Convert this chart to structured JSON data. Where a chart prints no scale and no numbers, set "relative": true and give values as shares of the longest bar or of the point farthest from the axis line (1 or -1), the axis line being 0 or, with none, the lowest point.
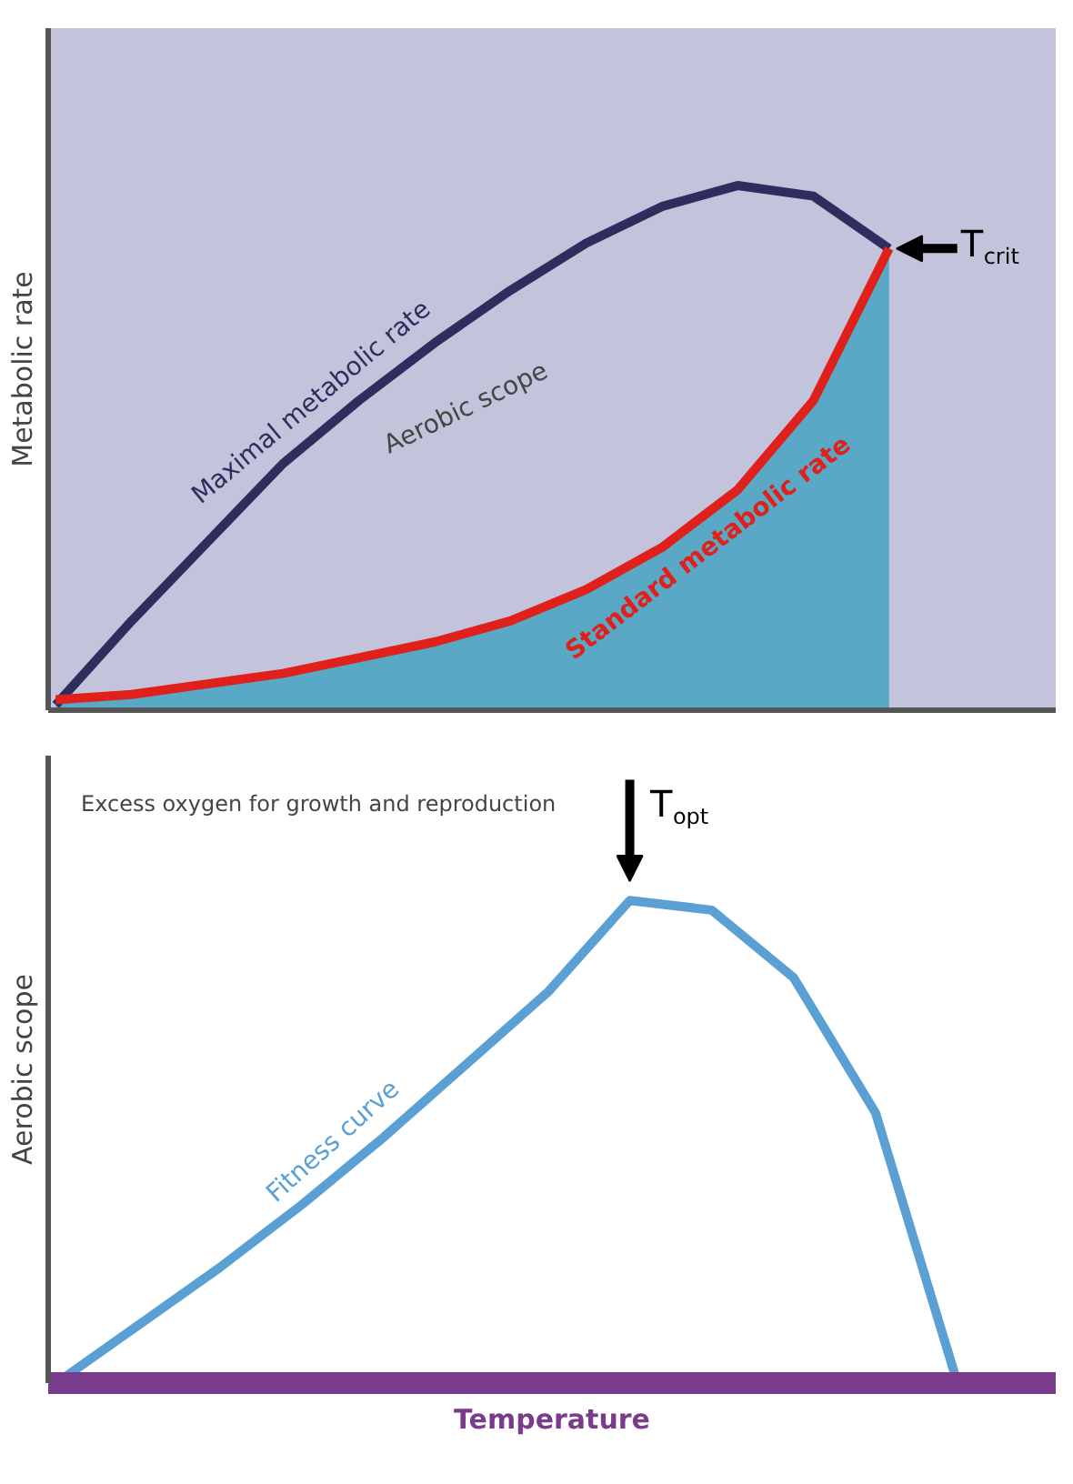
{
  "chart_data": [
    {
      "type": "line",
      "relative": true,
      "ylabel": "Metabolic rate",
      "categories": [
        null,
        null,
        null,
        null,
        null,
        null,
        null,
        null,
        null,
        null,
        null,
        null
      ],
      "grid": false,
      "series": [
        {
          "type": "area",
          "color": "#58a8c6",
          "values": [
            0.02,
            0.03,
            0.05,
            0.07,
            0.1,
            0.13,
            0.17,
            0.23,
            0.31,
            0.42,
            0.59,
            0.88
          ]
        },
        {
          "name": "Maximal metabolic rate",
          "color": "#2e2d5e",
          "values": [
            0.01,
            0.17,
            0.32,
            0.47,
            0.59,
            0.7,
            0.8,
            0.89,
            0.96,
            1.0,
            0.98,
            0.88
          ]
        },
        {
          "name": "Standard metabolic rate",
          "color": "#e0201b",
          "values": [
            0.02,
            0.03,
            0.05,
            0.07,
            0.1,
            0.13,
            0.17,
            0.23,
            0.31,
            0.42,
            0.59,
            0.88
          ]
        }
      ],
      "annotations": [
        "Aerobic scope",
        "T$_{crit}$"
      ]
    },
    {
      "type": "line",
      "relative": true,
      "ylabel": "Aerobic scope",
      "xlabel": "Temperature",
      "categories": [
        null,
        null,
        null,
        null,
        null,
        null,
        null,
        null,
        null,
        null,
        null,
        null
      ],
      "grid": false,
      "series": [
        {
          "name": "Fitness curve",
          "color": "#5aa0d4",
          "values": [
            0,
            0.12,
            0.24,
            0.37,
            0.51,
            0.66,
            0.81,
            1.0,
            0.98,
            0.84,
            0.56,
            0
          ]
        }
      ],
      "annotations": [
        "Excess oxygen for growth and reproduction",
        {
          "text": "T$_{opt}$",
          "y": 1.0
        }
      ]
    }
  ]
}
